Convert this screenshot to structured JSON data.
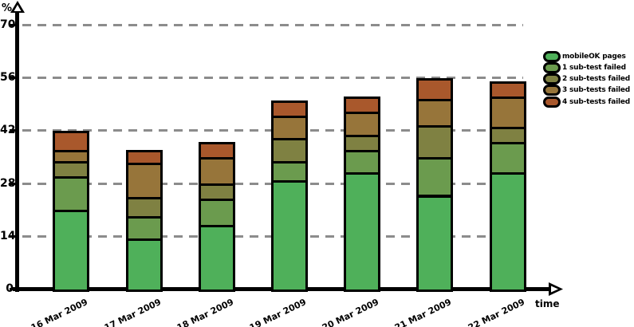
{
  "chart_data": {
    "type": "bar",
    "stacked": true,
    "title": "",
    "xlabel": "time",
    "ylabel": "%",
    "ylim": [
      0,
      70
    ],
    "y_tick_step": 14,
    "y_ticks": [
      "70",
      "56",
      "42",
      "28",
      "14",
      "0"
    ],
    "grid": "horizontal-dashed",
    "legend_position": "top-right",
    "categories": [
      "16 Mar 2009",
      "17 Mar 2009",
      "18 Mar 2009",
      "19 Mar 2009",
      "20 Mar 2009",
      "21 Mar 2009",
      "22 Mar 2009"
    ],
    "series": [
      {
        "name": "mobileOK pages",
        "color": "#4FB05A",
        "values": [
          21,
          13.5,
          17,
          29,
          31,
          25,
          31
        ]
      },
      {
        "name": "1 sub-test failed",
        "color": "#6B9B4E",
        "values": [
          9,
          6,
          7,
          5,
          6,
          10,
          8
        ]
      },
      {
        "name": "2 sub-tests failed",
        "color": "#7F8142",
        "values": [
          4,
          5,
          4,
          6,
          4,
          8.5,
          4
        ]
      },
      {
        "name": "3 sub-tests failed",
        "color": "#97753A",
        "values": [
          3,
          9,
          7,
          6,
          6,
          7,
          8
        ]
      },
      {
        "name": "4 sub-tests failed",
        "color": "#A9582C",
        "values": [
          5,
          3.5,
          4,
          4,
          4,
          5.5,
          4
        ]
      }
    ],
    "bar_totals": [
      42,
      37,
      39,
      50,
      51,
      56,
      55
    ],
    "colors": {
      "axis": "#000000",
      "gridline": "#8C8C8C"
    }
  }
}
